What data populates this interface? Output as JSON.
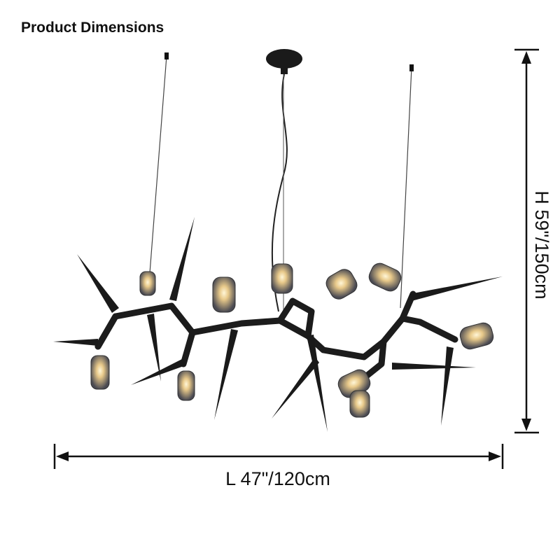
{
  "header": {
    "title": "Product Dimensions"
  },
  "dimensions": {
    "length": "L 47\"/120cm",
    "height": "H 59\"/150cm"
  }
}
